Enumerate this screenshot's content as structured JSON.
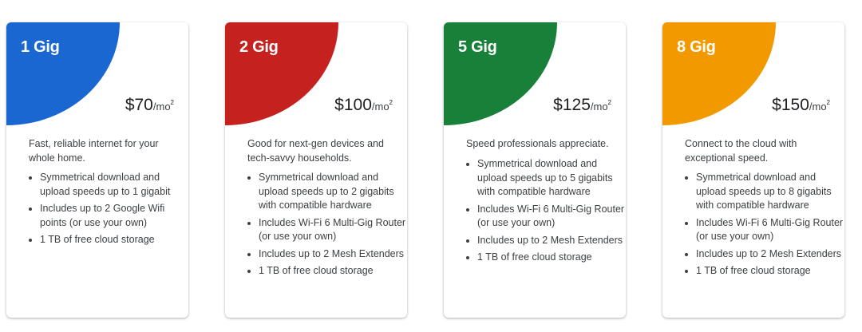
{
  "plans": [
    {
      "name": "1 Gig",
      "price": "$70",
      "unit": "/mo",
      "footnote": "2",
      "color": "#1a67d2",
      "description": "Fast, reliable internet for your whole home.",
      "features": [
        "Symmetrical download and upload speeds up to 1 gigabit",
        "Includes up to 2 Google Wifi points (or use your own)",
        "1 TB of free cloud storage"
      ]
    },
    {
      "name": "2 Gig",
      "price": "$100",
      "unit": "/mo",
      "footnote": "2",
      "color": "#c5221f",
      "description": "Good for next-gen devices and tech-savvy households.",
      "features": [
        "Symmetrical download and upload speeds up to 2 gigabits with compatible hardware",
        "Includes Wi-Fi 6 Multi-Gig Router (or use your own)",
        "Includes up to 2 Mesh Extenders",
        "1 TB of free cloud storage"
      ]
    },
    {
      "name": "5 Gig",
      "price": "$125",
      "unit": "/mo",
      "footnote": "2",
      "color": "#188038",
      "description": "Speed professionals appreciate.",
      "features": [
        "Symmetrical download and upload speeds up to 5 gigabits with compatible hardware",
        "Includes Wi-Fi 6 Multi-Gig Router (or use your own)",
        "Includes up to 2 Mesh Extenders",
        "1 TB of free cloud storage"
      ]
    },
    {
      "name": "8 Gig",
      "price": "$150",
      "unit": "/mo",
      "footnote": "2",
      "color": "#f29900",
      "description": "Connect to the cloud with exceptional speed.",
      "features": [
        "Symmetrical download and upload speeds up to 8 gigabits with compatible hardware",
        "Includes Wi-Fi 6 Multi-Gig Router (or use your own)",
        "Includes up to 2 Mesh Extenders",
        "1 TB of free cloud storage"
      ]
    }
  ]
}
